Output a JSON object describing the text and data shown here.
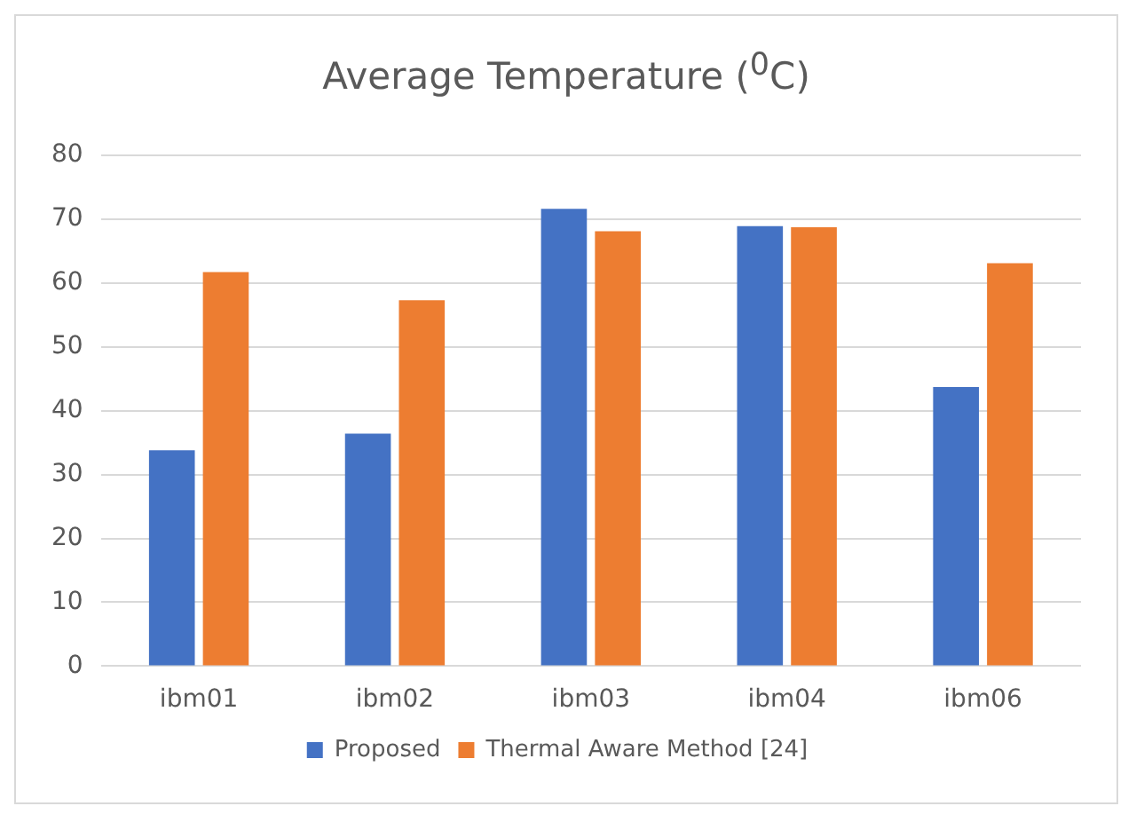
{
  "chart_data": {
    "type": "bar",
    "title": "Average Temperature ($^{0}$C)",
    "categories": [
      "ibm01",
      "ibm02",
      "ibm03",
      "ibm04",
      "ibm06"
    ],
    "series": [
      {
        "name": "Proposed",
        "color": "#4472c4",
        "values": [
          33.8,
          36.4,
          71.6,
          68.9,
          43.7
        ]
      },
      {
        "name": "Thermal Aware Method [24]",
        "color": "#ed7d31",
        "values": [
          61.7,
          57.3,
          68.1,
          68.7,
          63.1
        ]
      }
    ],
    "ylim": [
      0,
      80
    ],
    "yticks": [
      0,
      10,
      20,
      30,
      40,
      50,
      60,
      70,
      80
    ],
    "grid": "y",
    "legend": "bottom"
  }
}
